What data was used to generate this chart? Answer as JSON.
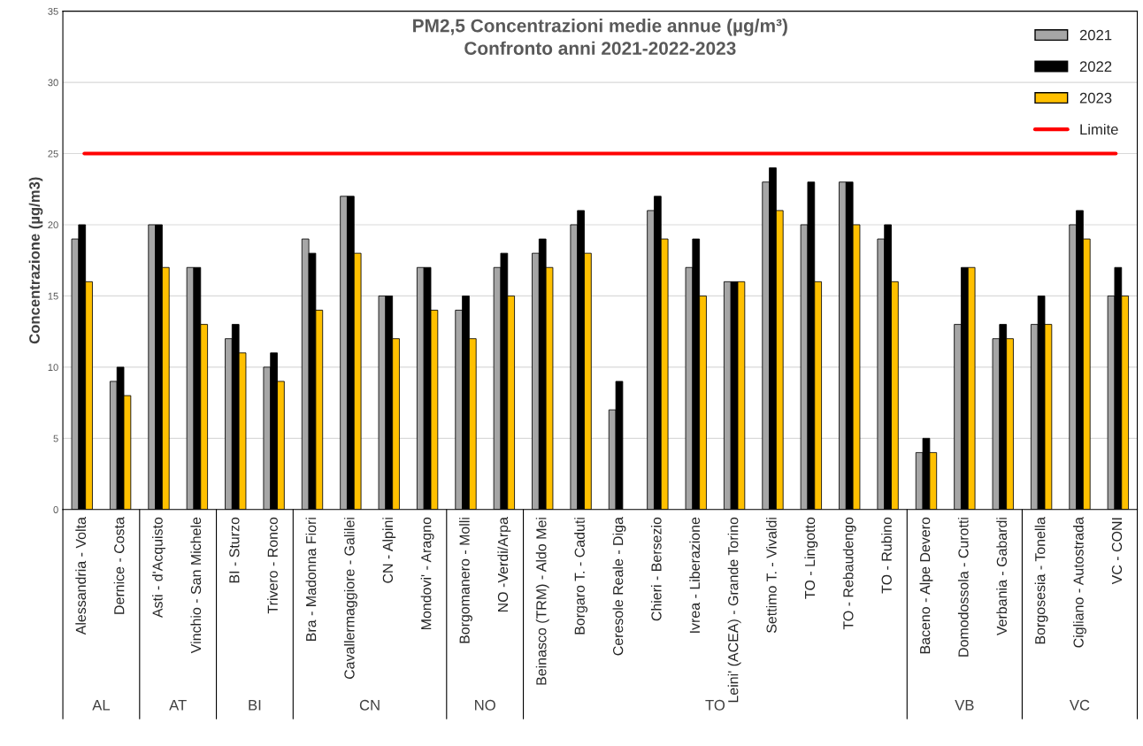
{
  "chart_data": {
    "type": "bar",
    "title": "PM2,5 Concentrazioni medie annue (µg/m³)\nConfronto anni 2021-2022-2023",
    "ylabel": "Concentrazione (µg/m3)",
    "categories": [
      "Alessandria - Volta",
      "Dernice - Costa",
      "Asti - d'Acquisto",
      "Vinchio - San Michele",
      "BI - Sturzo",
      "Trivero - Ronco",
      "Bra - Madonna Fiori",
      "Cavallermaggiore - Galilei",
      "CN - Alpini",
      "Mondovi' - Aragno",
      "Borgomanero - Molli",
      "NO -Verdi/Arpa",
      "Beinasco (TRM) - Aldo Mei",
      "Borgaro T. - Caduti",
      "Ceresole Reale - Diga",
      "Chieri - Bersezio",
      "Ivrea - Liberazione",
      "Leini' (ACEA) - Grande Torino",
      "Settimo T. - Vivaldi",
      "TO - Lingotto",
      "TO - Rebaudengo",
      "TO - Rubino",
      "Baceno - Alpe Devero",
      "Domodossola - Curotti",
      "Verbania - Gabardi",
      "Borgosesia - Tonella",
      "Cigliano - Autostrada",
      "VC - CONI"
    ],
    "series": [
      {
        "name": "2021",
        "color": "#a6a6a6",
        "values": [
          19,
          9,
          20,
          17,
          12,
          10,
          19,
          22,
          15,
          17,
          14,
          17,
          18,
          20,
          7,
          21,
          17,
          16,
          23,
          20,
          23,
          19,
          4,
          13,
          12,
          13,
          20,
          15
        ]
      },
      {
        "name": "2022",
        "color": "#000000",
        "values": [
          20,
          10,
          20,
          17,
          13,
          11,
          18,
          22,
          15,
          17,
          15,
          18,
          19,
          21,
          9,
          22,
          19,
          16,
          24,
          23,
          23,
          20,
          5,
          17,
          13,
          15,
          21,
          17
        ]
      },
      {
        "name": "2023",
        "color": "#ffc000",
        "values": [
          16,
          8,
          17,
          13,
          11,
          9,
          14,
          18,
          12,
          14,
          12,
          15,
          17,
          18,
          null,
          19,
          15,
          16,
          21,
          16,
          20,
          16,
          4,
          17,
          12,
          13,
          19,
          15
        ]
      }
    ],
    "ref_lines": [
      {
        "axis": "y",
        "value": 25,
        "label": "Limite",
        "color": "#ff0000"
      }
    ],
    "annotations": [
      "AL",
      "AT",
      "BI",
      "CN",
      "NO",
      "TO",
      "VB",
      "VC"
    ],
    "ylim": [
      0,
      35
    ],
    "yticks": [
      0,
      5,
      10,
      15,
      20,
      25,
      30,
      35
    ],
    "grid": "y",
    "legend": "top right"
  }
}
